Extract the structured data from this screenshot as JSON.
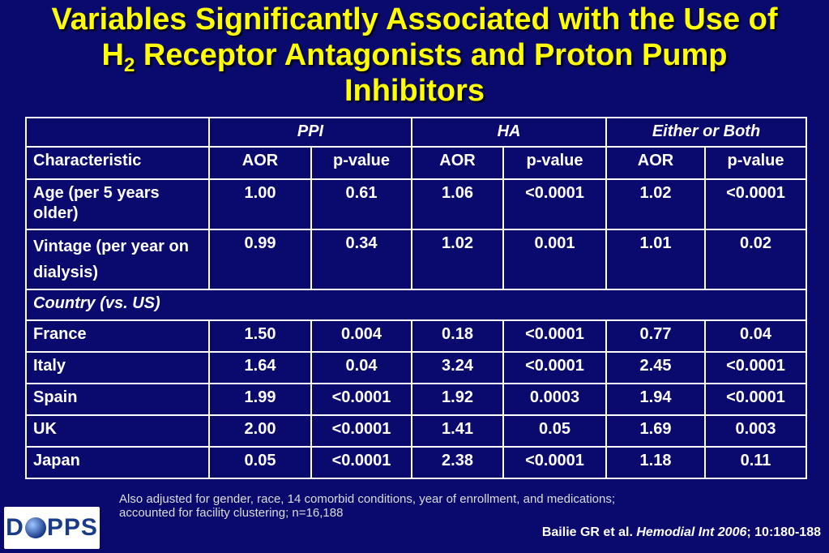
{
  "title": {
    "line1": "Variables Significantly Associated with the Use of",
    "line2_pre": "H",
    "line2_sub": "2",
    "line2_post": " Receptor Antagonists and Proton Pump",
    "line3": "Inhibitors"
  },
  "table": {
    "groups": [
      "PPI",
      "HA",
      "Either or Both"
    ],
    "headers": [
      "Characteristic",
      "AOR",
      "p-value",
      "AOR",
      "p-value",
      "AOR",
      "p-value"
    ],
    "rows": [
      [
        "Age (per 5 years older)",
        "1.00",
        "0.61",
        "1.06",
        "<0.0001",
        "1.02",
        "<0.0001"
      ],
      [
        "Vintage (per year on dialysis)",
        "0.99",
        "0.34",
        "1.02",
        "0.001",
        "1.01",
        "0.02"
      ]
    ],
    "section_label": "Country (vs. US)",
    "country_rows": [
      [
        "France",
        "1.50",
        "0.004",
        "0.18",
        "<0.0001",
        "0.77",
        "0.04"
      ],
      [
        "Italy",
        "1.64",
        "0.04",
        "3.24",
        "<0.0001",
        "2.45",
        "<0.0001"
      ],
      [
        "Spain",
        "1.99",
        "<0.0001",
        "1.92",
        "0.0003",
        "1.94",
        "<0.0001"
      ],
      [
        "UK",
        "2.00",
        "<0.0001",
        "1.41",
        "0.05",
        "1.69",
        "0.003"
      ],
      [
        "Japan",
        "0.05",
        "<0.0001",
        "2.38",
        "<0.0001",
        "1.18",
        "0.11"
      ]
    ]
  },
  "footnote": {
    "line1": "Also adjusted for gender, race, 14 comorbid conditions, year of enrollment, and medications;",
    "line2": "accounted for facility clustering; n=16,188"
  },
  "citation": {
    "authors": "Bailie GR et al. ",
    "journal": "Hemodial Int 2006",
    "ref": "; 10:180-188"
  },
  "logo": {
    "pre": "D",
    "post": "PPS"
  }
}
